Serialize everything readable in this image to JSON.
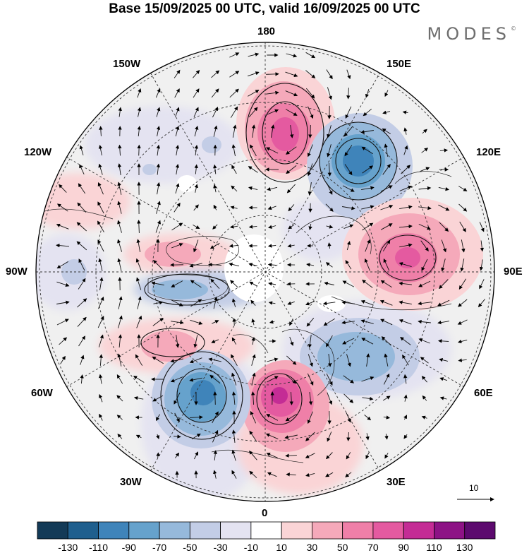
{
  "title": "Base 15/09/2025 00 UTC, valid 16/09/2025 00 UTC",
  "brand": {
    "name": "MODES",
    "mark": "©"
  },
  "longitude_labels": {
    "top": "180",
    "bottom": "0",
    "left": "90W",
    "right": "90E",
    "upper_left_1": "150W",
    "upper_left_2": "120W",
    "lower_left_1": "60W",
    "lower_left_2": "30W",
    "upper_right_1": "150E",
    "upper_right_2": "120E",
    "lower_right_1": "60E",
    "lower_right_2": "30E"
  },
  "vector_scale": {
    "label": "10"
  },
  "colorbar": {
    "ticks": [
      "-130",
      "-110",
      "-90",
      "-70",
      "-50",
      "-30",
      "-10",
      "10",
      "30",
      "50",
      "70",
      "90",
      "110",
      "130"
    ],
    "colors": [
      "#133a57",
      "#1f5f8e",
      "#3f84ba",
      "#66a2cc",
      "#96b9db",
      "#c3cde6",
      "#e4e3f1",
      "#ffffff",
      "#fad4d6",
      "#f5a9ba",
      "#ef7fa8",
      "#e45aa0",
      "#c42c95",
      "#8d1385",
      "#5c0a6e"
    ]
  }
}
